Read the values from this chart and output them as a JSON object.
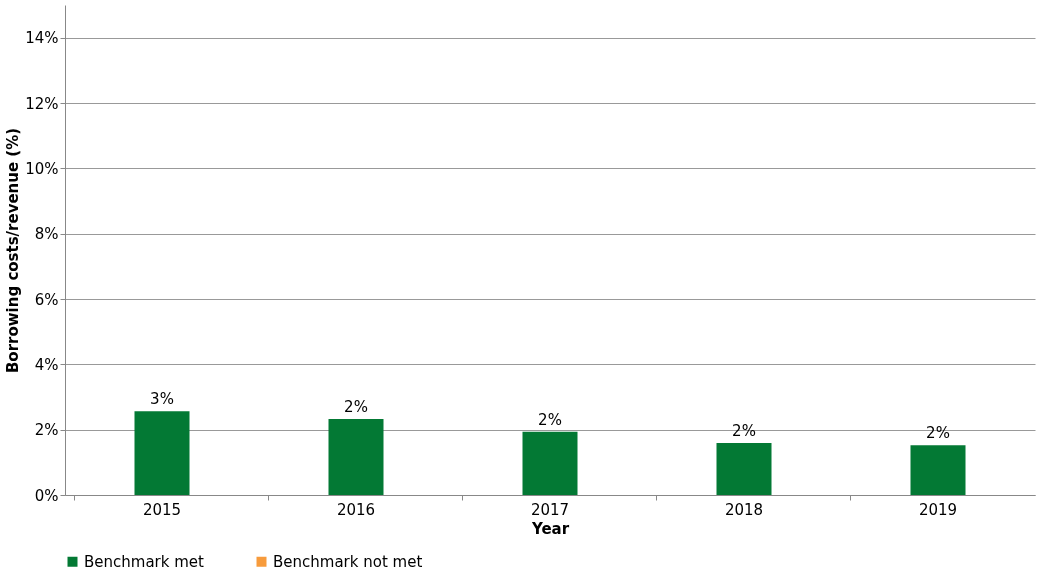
{
  "chart_data": {
    "type": "bar",
    "xlabel": "Year",
    "ylabel": "Borrowing costs/revenue (%)",
    "categories": [
      "2015",
      "2016",
      "2017",
      "2018",
      "2019"
    ],
    "series": [
      {
        "name": "Benchmark met",
        "color": "#037934",
        "values": [
          2.56,
          2.33,
          1.94,
          1.59,
          1.52
        ],
        "value_labels": [
          "3%",
          "2%",
          "2%",
          "2%",
          "2%"
        ]
      },
      {
        "name": "Benchmark not met",
        "color": "#f79b3c",
        "values": [
          null,
          null,
          null,
          null,
          null
        ]
      }
    ],
    "ylim": [
      0,
      15
    ],
    "yticks": [
      {
        "value": 0,
        "label": "0%"
      },
      {
        "value": 2,
        "label": "2%"
      },
      {
        "value": 4,
        "label": "4%"
      },
      {
        "value": 6,
        "label": "6%"
      },
      {
        "value": 8,
        "label": "8%"
      },
      {
        "value": 10,
        "label": "10%"
      },
      {
        "value": 12,
        "label": "12%"
      },
      {
        "value": 14,
        "label": "14%"
      }
    ],
    "grid": "y",
    "legend": "bottom"
  }
}
